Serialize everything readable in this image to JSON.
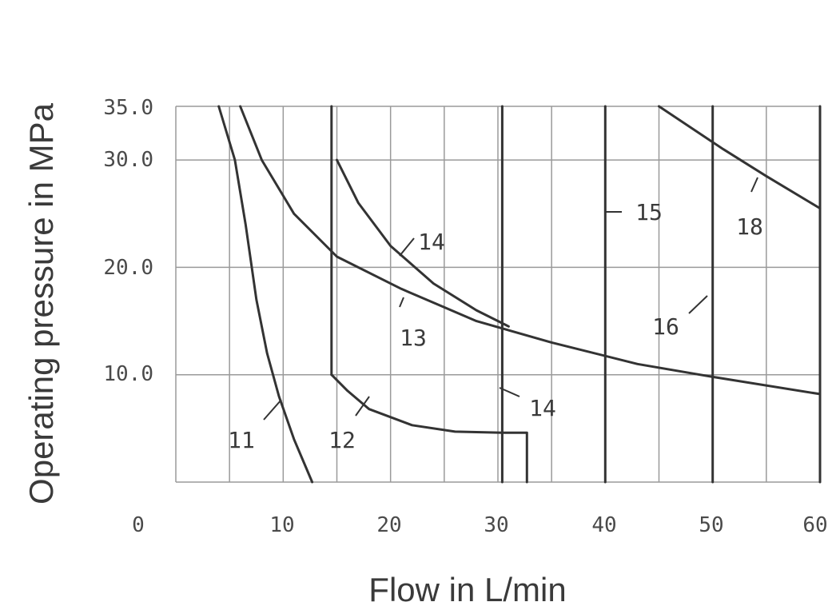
{
  "chart_data": {
    "type": "line",
    "title": "",
    "xlabel": "Flow in L/min",
    "ylabel": "Operating pressure in MPa",
    "xlim": [
      0,
      60
    ],
    "ylim": [
      0,
      35
    ],
    "x_ticks": [
      "0",
      "10",
      "20",
      "30",
      "40",
      "50",
      "60"
    ],
    "y_ticks": [
      "10.0",
      "20.0",
      "30.0",
      "35.0"
    ],
    "grid": true,
    "series": [
      {
        "name": "11",
        "points": [
          [
            4,
            35
          ],
          [
            5.5,
            30
          ],
          [
            6.5,
            24
          ],
          [
            7.5,
            17
          ],
          [
            8.5,
            12
          ],
          [
            9.6,
            8
          ],
          [
            11,
            4
          ],
          [
            12.7,
            0
          ]
        ]
      },
      {
        "name": "12",
        "points": [
          [
            14.5,
            10
          ],
          [
            16,
            8.5
          ],
          [
            18,
            6.8
          ],
          [
            22,
            5.3
          ],
          [
            26,
            4.7
          ],
          [
            30.4,
            4.6
          ],
          [
            32.7,
            4.6
          ],
          [
            32.7,
            0
          ]
        ]
      },
      {
        "name": "13",
        "points": [
          [
            6,
            35
          ],
          [
            8,
            30
          ],
          [
            11,
            25
          ],
          [
            15,
            21
          ],
          [
            21,
            18
          ],
          [
            28,
            15
          ],
          [
            35,
            13
          ],
          [
            43,
            11
          ],
          [
            50,
            9.8
          ],
          [
            60,
            8.2
          ]
        ]
      },
      {
        "name": "14",
        "points": [
          [
            15,
            30
          ],
          [
            17,
            26
          ],
          [
            20,
            22
          ],
          [
            24,
            18.5
          ],
          [
            28,
            16
          ],
          [
            31,
            14.5
          ]
        ]
      },
      {
        "name": "14",
        "points": [
          [
            14.5,
            35
          ],
          [
            14.5,
            10
          ]
        ]
      },
      {
        "name": "14",
        "points": [
          [
            30.4,
            35
          ],
          [
            30.4,
            0
          ]
        ]
      },
      {
        "name": "15",
        "points": [
          [
            40,
            35
          ],
          [
            40,
            0
          ]
        ]
      },
      {
        "name": "16",
        "points": [
          [
            50,
            35
          ],
          [
            50,
            0
          ]
        ]
      },
      {
        "name": "18",
        "points": [
          [
            45,
            35
          ],
          [
            48,
            33
          ],
          [
            51,
            31
          ],
          [
            55,
            28.5
          ],
          [
            60,
            25.5
          ]
        ]
      },
      {
        "name": "",
        "points": [
          [
            60,
            35
          ],
          [
            60,
            0
          ]
        ]
      }
    ],
    "annotations": [
      "11",
      "12",
      "13",
      "14",
      "14",
      "15",
      "16",
      "18"
    ]
  }
}
